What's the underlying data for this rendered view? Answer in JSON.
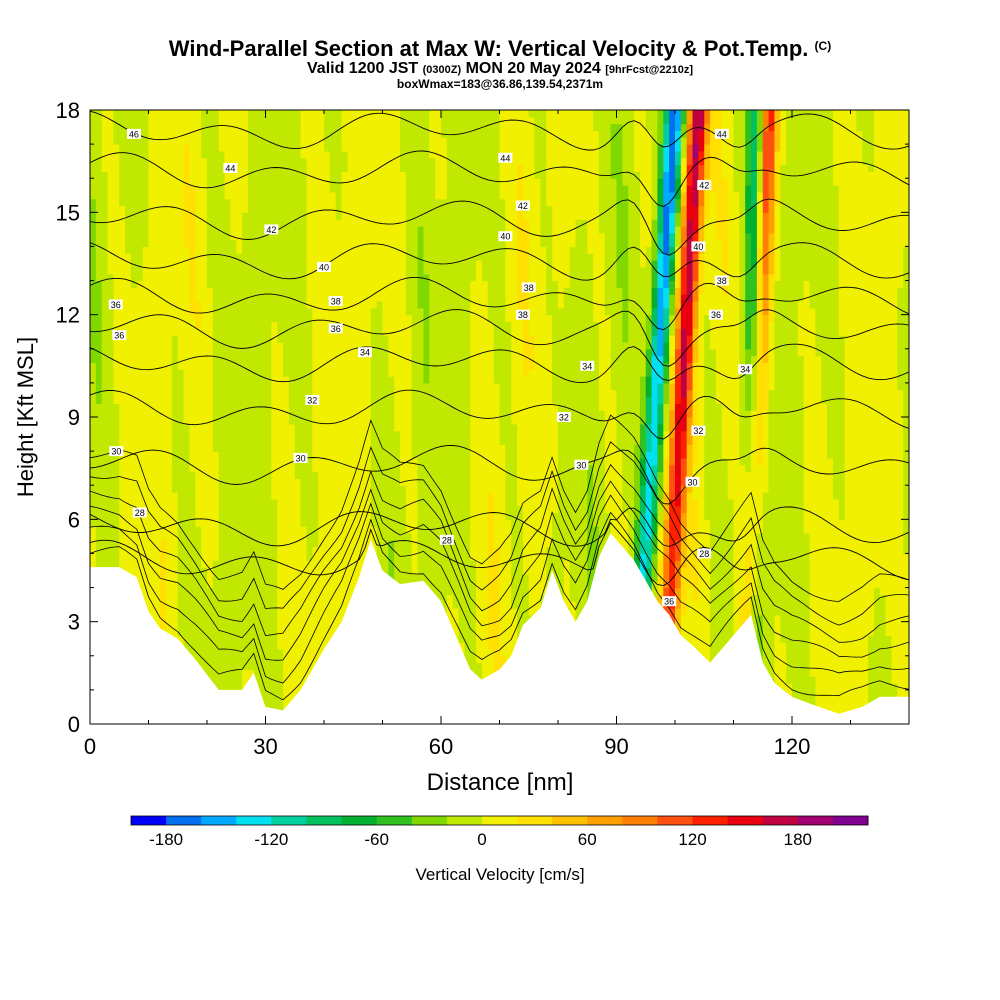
{
  "title": {
    "line1": "Wind-Parallel Section at Max W: Vertical Velocity & Pot.Temp.",
    "line1_mark": "(C)",
    "line2_a": "Valid 1200 JST ",
    "line2_b": "(0300Z)",
    "line2_c": " MON 20 May 2024 ",
    "line2_d": "[9hrFcst@2210z]",
    "line3": "boxWmax=183@36.86,139.54,2371m"
  },
  "chart_data": {
    "type": "heatmap",
    "xlabel": "Distance [nm]",
    "ylabel": "Height [Kft MSL]",
    "xlim": [
      0,
      140
    ],
    "ylim": [
      0,
      18
    ],
    "x_ticks": [
      0,
      30,
      60,
      90,
      120
    ],
    "y_ticks": [
      0,
      3,
      6,
      9,
      12,
      15,
      18
    ],
    "colorbar": {
      "label": "Vertical Velocity [cm/s]",
      "range": [
        -200,
        220
      ],
      "step": 20,
      "tick_values": [
        -180,
        -120,
        -60,
        0,
        60,
        120,
        180
      ],
      "colors": [
        "#0000ff",
        "#0070f0",
        "#00a8ff",
        "#00e0f0",
        "#00d0a0",
        "#00c060",
        "#00b030",
        "#30c020",
        "#80d800",
        "#c0e800",
        "#f0f000",
        "#ffe000",
        "#ffc000",
        "#ffa000",
        "#ff8000",
        "#ff5010",
        "#ff2000",
        "#e80010",
        "#c00040",
        "#a00070",
        "#800090"
      ]
    },
    "terrain_top_kft": [
      [
        0,
        4.6
      ],
      [
        5,
        4.6
      ],
      [
        8,
        4.3
      ],
      [
        10,
        3.3
      ],
      [
        12,
        2.8
      ],
      [
        15,
        2.5
      ],
      [
        18,
        1.9
      ],
      [
        22,
        1.0
      ],
      [
        26,
        1.0
      ],
      [
        28,
        1.5
      ],
      [
        30,
        0.5
      ],
      [
        33,
        0.4
      ],
      [
        36,
        1.0
      ],
      [
        40,
        2.2
      ],
      [
        43,
        3.0
      ],
      [
        46,
        4.3
      ],
      [
        48,
        5.4
      ],
      [
        50,
        4.5
      ],
      [
        53,
        4.1
      ],
      [
        57,
        4.2
      ],
      [
        60,
        3.6
      ],
      [
        63,
        2.4
      ],
      [
        65,
        1.6
      ],
      [
        67,
        1.3
      ],
      [
        70,
        1.6
      ],
      [
        72,
        2.0
      ],
      [
        74,
        2.9
      ],
      [
        77,
        3.4
      ],
      [
        79,
        4.5
      ],
      [
        81,
        3.6
      ],
      [
        83,
        3.0
      ],
      [
        85,
        3.6
      ],
      [
        87,
        4.9
      ],
      [
        89,
        5.6
      ],
      [
        91,
        5.2
      ],
      [
        93,
        4.8
      ],
      [
        95,
        4.2
      ],
      [
        97,
        3.6
      ],
      [
        99,
        3.2
      ],
      [
        101,
        2.6
      ],
      [
        103,
        2.3
      ],
      [
        106,
        1.8
      ],
      [
        110,
        2.6
      ],
      [
        113,
        3.2
      ],
      [
        115,
        1.8
      ],
      [
        117,
        1.2
      ],
      [
        120,
        0.8
      ],
      [
        123,
        0.6
      ],
      [
        128,
        0.3
      ],
      [
        132,
        0.5
      ],
      [
        135,
        0.8
      ],
      [
        140,
        0.8
      ]
    ],
    "theta_contours_C": [
      26,
      28,
      30,
      32,
      34,
      36,
      38,
      40,
      42,
      44,
      46
    ],
    "theta_labels": [
      {
        "text": "46",
        "x": 7.5,
        "y": 17.3
      },
      {
        "text": "44",
        "x": 24,
        "y": 16.3
      },
      {
        "text": "42",
        "x": 31,
        "y": 14.5
      },
      {
        "text": "40",
        "x": 40,
        "y": 13.4
      },
      {
        "text": "38",
        "x": 42,
        "y": 12.4
      },
      {
        "text": "36",
        "x": 42,
        "y": 11.6
      },
      {
        "text": "34",
        "x": 47,
        "y": 10.9
      },
      {
        "text": "32",
        "x": 38,
        "y": 9.5
      },
      {
        "text": "30",
        "x": 36,
        "y": 7.8
      },
      {
        "text": "36",
        "x": 4.4,
        "y": 12.3
      },
      {
        "text": "36",
        "x": 5,
        "y": 11.4
      },
      {
        "text": "30",
        "x": 4.5,
        "y": 8.0
      },
      {
        "text": "28",
        "x": 8.5,
        "y": 6.2
      },
      {
        "text": "28",
        "x": 61,
        "y": 5.4
      },
      {
        "text": "44",
        "x": 71,
        "y": 16.6
      },
      {
        "text": "42",
        "x": 74,
        "y": 15.2
      },
      {
        "text": "40",
        "x": 71,
        "y": 14.3
      },
      {
        "text": "38",
        "x": 75,
        "y": 12.8
      },
      {
        "text": "38",
        "x": 74,
        "y": 12.0
      },
      {
        "text": "34",
        "x": 85,
        "y": 10.5
      },
      {
        "text": "32",
        "x": 81,
        "y": 9.0
      },
      {
        "text": "30",
        "x": 84,
        "y": 7.6
      },
      {
        "text": "44",
        "x": 108,
        "y": 17.3
      },
      {
        "text": "42",
        "x": 105,
        "y": 15.8
      },
      {
        "text": "40",
        "x": 104,
        "y": 14.0
      },
      {
        "text": "38",
        "x": 108,
        "y": 13.0
      },
      {
        "text": "36",
        "x": 107,
        "y": 12.0
      },
      {
        "text": "34",
        "x": 112,
        "y": 10.4
      },
      {
        "text": "32",
        "x": 104,
        "y": 8.6
      },
      {
        "text": "30",
        "x": 103,
        "y": 7.1
      },
      {
        "text": "28",
        "x": 105,
        "y": 5.0
      },
      {
        "text": "36",
        "x": 99,
        "y": 3.6
      }
    ],
    "updraft_features": [
      {
        "name": "max updraft",
        "x_top": 104,
        "x_bottom": 98,
        "w_cms": 183
      },
      {
        "name": "secondary updraft",
        "x_top": 116,
        "x_bottom": 112,
        "w_cms": 150
      }
    ],
    "downdraft_features": [
      {
        "name": "downdraft",
        "x_top": 100,
        "x_bottom": 93,
        "w_cms": -180
      },
      {
        "name": "downdraft",
        "x_top": 114,
        "x_bottom": 113,
        "w_cms": -120
      }
    ]
  }
}
